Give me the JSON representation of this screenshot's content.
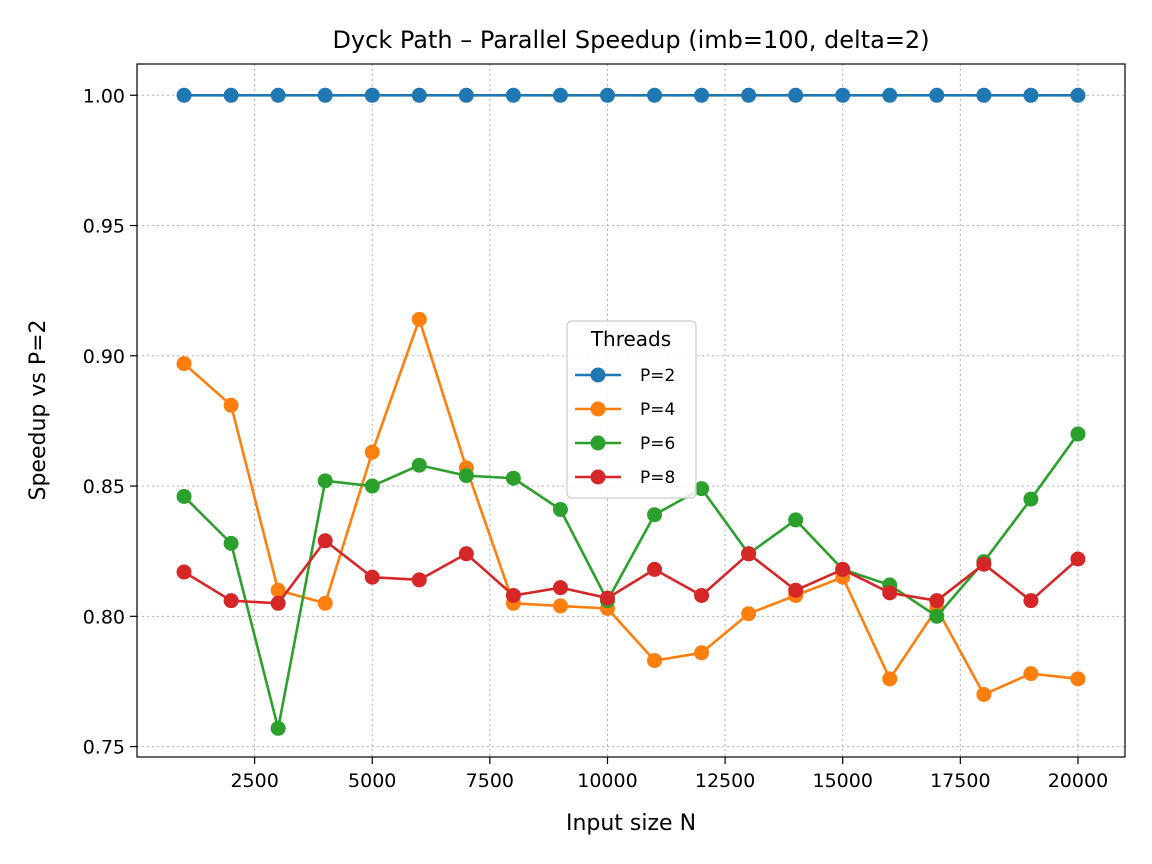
{
  "chart_data": {
    "type": "line",
    "title": "Dyck Path – Parallel Speedup (imb=100, delta=2)",
    "xlabel": "Input size N",
    "ylabel": "Speedup vs P=2",
    "xlim": [
      0,
      21000
    ],
    "ylim": [
      0.746,
      1.012
    ],
    "xticks": [
      2500,
      5000,
      7500,
      10000,
      12500,
      15000,
      17500,
      20000
    ],
    "yticks": [
      0.75,
      0.8,
      0.85,
      0.9,
      0.95,
      1.0
    ],
    "ytick_labels": [
      "0.75",
      "0.80",
      "0.85",
      "0.90",
      "0.95",
      "1.00"
    ],
    "grid": true,
    "legend": {
      "title": "Threads",
      "placement": "center"
    },
    "x": [
      1000,
      2000,
      3000,
      4000,
      5000,
      6000,
      7000,
      8000,
      9000,
      10000,
      11000,
      12000,
      13000,
      14000,
      15000,
      16000,
      17000,
      18000,
      19000,
      20000
    ],
    "series": [
      {
        "name": "P=2",
        "color": "#1f77b4",
        "values": [
          1.0,
          1.0,
          1.0,
          1.0,
          1.0,
          1.0,
          1.0,
          1.0,
          1.0,
          1.0,
          1.0,
          1.0,
          1.0,
          1.0,
          1.0,
          1.0,
          1.0,
          1.0,
          1.0,
          1.0
        ]
      },
      {
        "name": "P=4",
        "color": "#ff7f0e",
        "values": [
          0.897,
          0.881,
          0.81,
          0.805,
          0.863,
          0.914,
          0.857,
          0.805,
          0.804,
          0.803,
          0.783,
          0.786,
          0.801,
          0.808,
          0.815,
          0.776,
          0.803,
          0.77,
          0.778,
          0.776
        ]
      },
      {
        "name": "P=6",
        "color": "#2ca02c",
        "values": [
          0.846,
          0.828,
          0.757,
          0.852,
          0.85,
          0.858,
          0.854,
          0.853,
          0.841,
          0.806,
          0.839,
          0.849,
          0.824,
          0.837,
          0.818,
          0.812,
          0.8,
          0.821,
          0.845,
          0.87
        ]
      },
      {
        "name": "P=8",
        "color": "#d62728",
        "values": [
          0.817,
          0.806,
          0.805,
          0.829,
          0.815,
          0.814,
          0.824,
          0.808,
          0.811,
          0.807,
          0.818,
          0.808,
          0.824,
          0.81,
          0.818,
          0.809,
          0.806,
          0.82,
          0.806,
          0.822
        ]
      }
    ]
  }
}
